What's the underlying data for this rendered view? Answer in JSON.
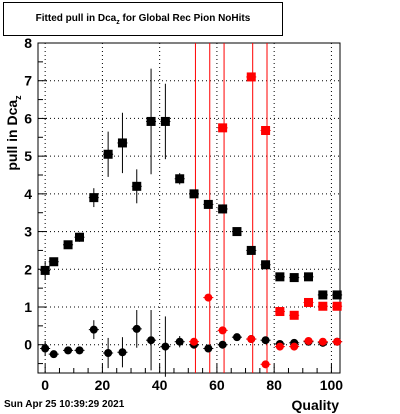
{
  "title": {
    "main": "Fitted pull in Dca",
    "sub": "z",
    "rest": " for Global Rec Pion NoHits"
  },
  "timestamp": "Sun Apr 25 10:39:29 2021",
  "chart_data": {
    "type": "scatter",
    "xlabel": "Quality",
    "ylabel": "pull in Dca",
    "ylabel_sub": "z",
    "xlim": [
      -2.5,
      103
    ],
    "ylim": [
      -0.75,
      8
    ],
    "grid": true,
    "x_ticks": [
      0,
      20,
      40,
      60,
      80,
      100
    ],
    "y_ticks": [
      0,
      1,
      2,
      3,
      4,
      5,
      6,
      7,
      8
    ],
    "vertical_lines": [
      52.5,
      57.5,
      62.5,
      72.5,
      77.5
    ],
    "series": [
      {
        "color": "#000000",
        "marker": "square",
        "points": [
          {
            "x": 0,
            "y": 1.97,
            "err": 0.25
          },
          {
            "x": 3,
            "y": 2.2,
            "err": 0.1
          },
          {
            "x": 8,
            "y": 2.65,
            "err": 0.1
          },
          {
            "x": 12,
            "y": 2.85,
            "err": 0.12
          },
          {
            "x": 17,
            "y": 3.9,
            "err": 0.25
          },
          {
            "x": 22,
            "y": 5.05,
            "err": 0.6
          },
          {
            "x": 27,
            "y": 5.35,
            "err": 0.8
          },
          {
            "x": 32,
            "y": 4.2,
            "err": 0.45
          },
          {
            "x": 37,
            "y": 5.92,
            "err": 1.4
          },
          {
            "x": 42,
            "y": 5.92,
            "err": 1.0
          },
          {
            "x": 47,
            "y": 4.4,
            "err": 0.15
          },
          {
            "x": 52,
            "y": 4.0,
            "err": 0.1
          },
          {
            "x": 57,
            "y": 3.72,
            "err": 0.1
          },
          {
            "x": 62,
            "y": 3.6,
            "err": 0.12
          },
          {
            "x": 67,
            "y": 3.0,
            "err": 0.05
          },
          {
            "x": 72,
            "y": 2.5,
            "err": 0.05
          },
          {
            "x": 77,
            "y": 2.12,
            "err": 0.05
          },
          {
            "x": 82,
            "y": 1.8,
            "err": 0.05
          },
          {
            "x": 87,
            "y": 1.78,
            "err": 0.05
          },
          {
            "x": 92,
            "y": 1.8,
            "err": 0.05
          },
          {
            "x": 97,
            "y": 1.32,
            "err": 0.05
          },
          {
            "x": 102,
            "y": 1.32,
            "err": 0.05
          }
        ]
      },
      {
        "color": "#000000",
        "marker": "circle",
        "points": [
          {
            "x": 0,
            "y": -0.1,
            "err": 0.2
          },
          {
            "x": 3,
            "y": -0.25,
            "err": 0.08
          },
          {
            "x": 8,
            "y": -0.15,
            "err": 0.1
          },
          {
            "x": 12,
            "y": -0.15,
            "err": 0.1
          },
          {
            "x": 17,
            "y": 0.4,
            "err": 0.25
          },
          {
            "x": 22,
            "y": -0.22,
            "err": 0.4
          },
          {
            "x": 27,
            "y": -0.2,
            "err": 0.4
          },
          {
            "x": 32,
            "y": 0.42,
            "err": 0.5
          },
          {
            "x": 37,
            "y": 0.12,
            "err": 0.8
          },
          {
            "x": 42,
            "y": -0.05,
            "err": 0.8
          },
          {
            "x": 47,
            "y": 0.08,
            "err": 0.15
          },
          {
            "x": 52,
            "y": 0.0,
            "err": 0.1
          },
          {
            "x": 57,
            "y": -0.1,
            "err": 0.1
          },
          {
            "x": 62,
            "y": 0.0,
            "err": 0.1
          },
          {
            "x": 67,
            "y": 0.2,
            "err": 0.05
          },
          {
            "x": 72,
            "y": 0.15,
            "err": 0.05
          },
          {
            "x": 77,
            "y": 0.12,
            "err": 0.05
          },
          {
            "x": 82,
            "y": 0.02,
            "err": 0.05
          },
          {
            "x": 87,
            "y": 0.05,
            "err": 0.05
          },
          {
            "x": 92,
            "y": 0.08,
            "err": 0.05
          },
          {
            "x": 97,
            "y": 0.05,
            "err": 0.05
          },
          {
            "x": 102,
            "y": 0.08,
            "err": 0.05
          }
        ]
      },
      {
        "color": "#ff0000",
        "marker": "square",
        "points": [
          {
            "x": 62,
            "y": 5.75,
            "err": 0.05
          },
          {
            "x": 72,
            "y": 7.1,
            "err": 0.05
          },
          {
            "x": 77,
            "y": 5.68,
            "err": 0.05
          },
          {
            "x": 82,
            "y": 0.88,
            "err": 0.05
          },
          {
            "x": 87,
            "y": 0.78,
            "err": 0.05
          },
          {
            "x": 92,
            "y": 1.12,
            "err": 0.05
          },
          {
            "x": 97,
            "y": 1.02,
            "err": 0.05
          },
          {
            "x": 102,
            "y": 1.02,
            "err": 0.05
          }
        ]
      },
      {
        "color": "#ff0000",
        "marker": "circle",
        "points": [
          {
            "x": 52,
            "y": 0.08,
            "err": 0.05
          },
          {
            "x": 57,
            "y": 1.25,
            "err": 0.05
          },
          {
            "x": 62,
            "y": 0.38,
            "err": 0.05
          },
          {
            "x": 72,
            "y": 0.15,
            "err": 0.05
          },
          {
            "x": 77,
            "y": -0.52,
            "err": 0.05
          },
          {
            "x": 82,
            "y": -0.05,
            "err": 0.05
          },
          {
            "x": 87,
            "y": -0.05,
            "err": 0.05
          },
          {
            "x": 92,
            "y": 0.1,
            "err": 0.05
          },
          {
            "x": 97,
            "y": 0.08,
            "err": 0.05
          },
          {
            "x": 102,
            "y": 0.08,
            "err": 0.05
          }
        ]
      }
    ]
  }
}
